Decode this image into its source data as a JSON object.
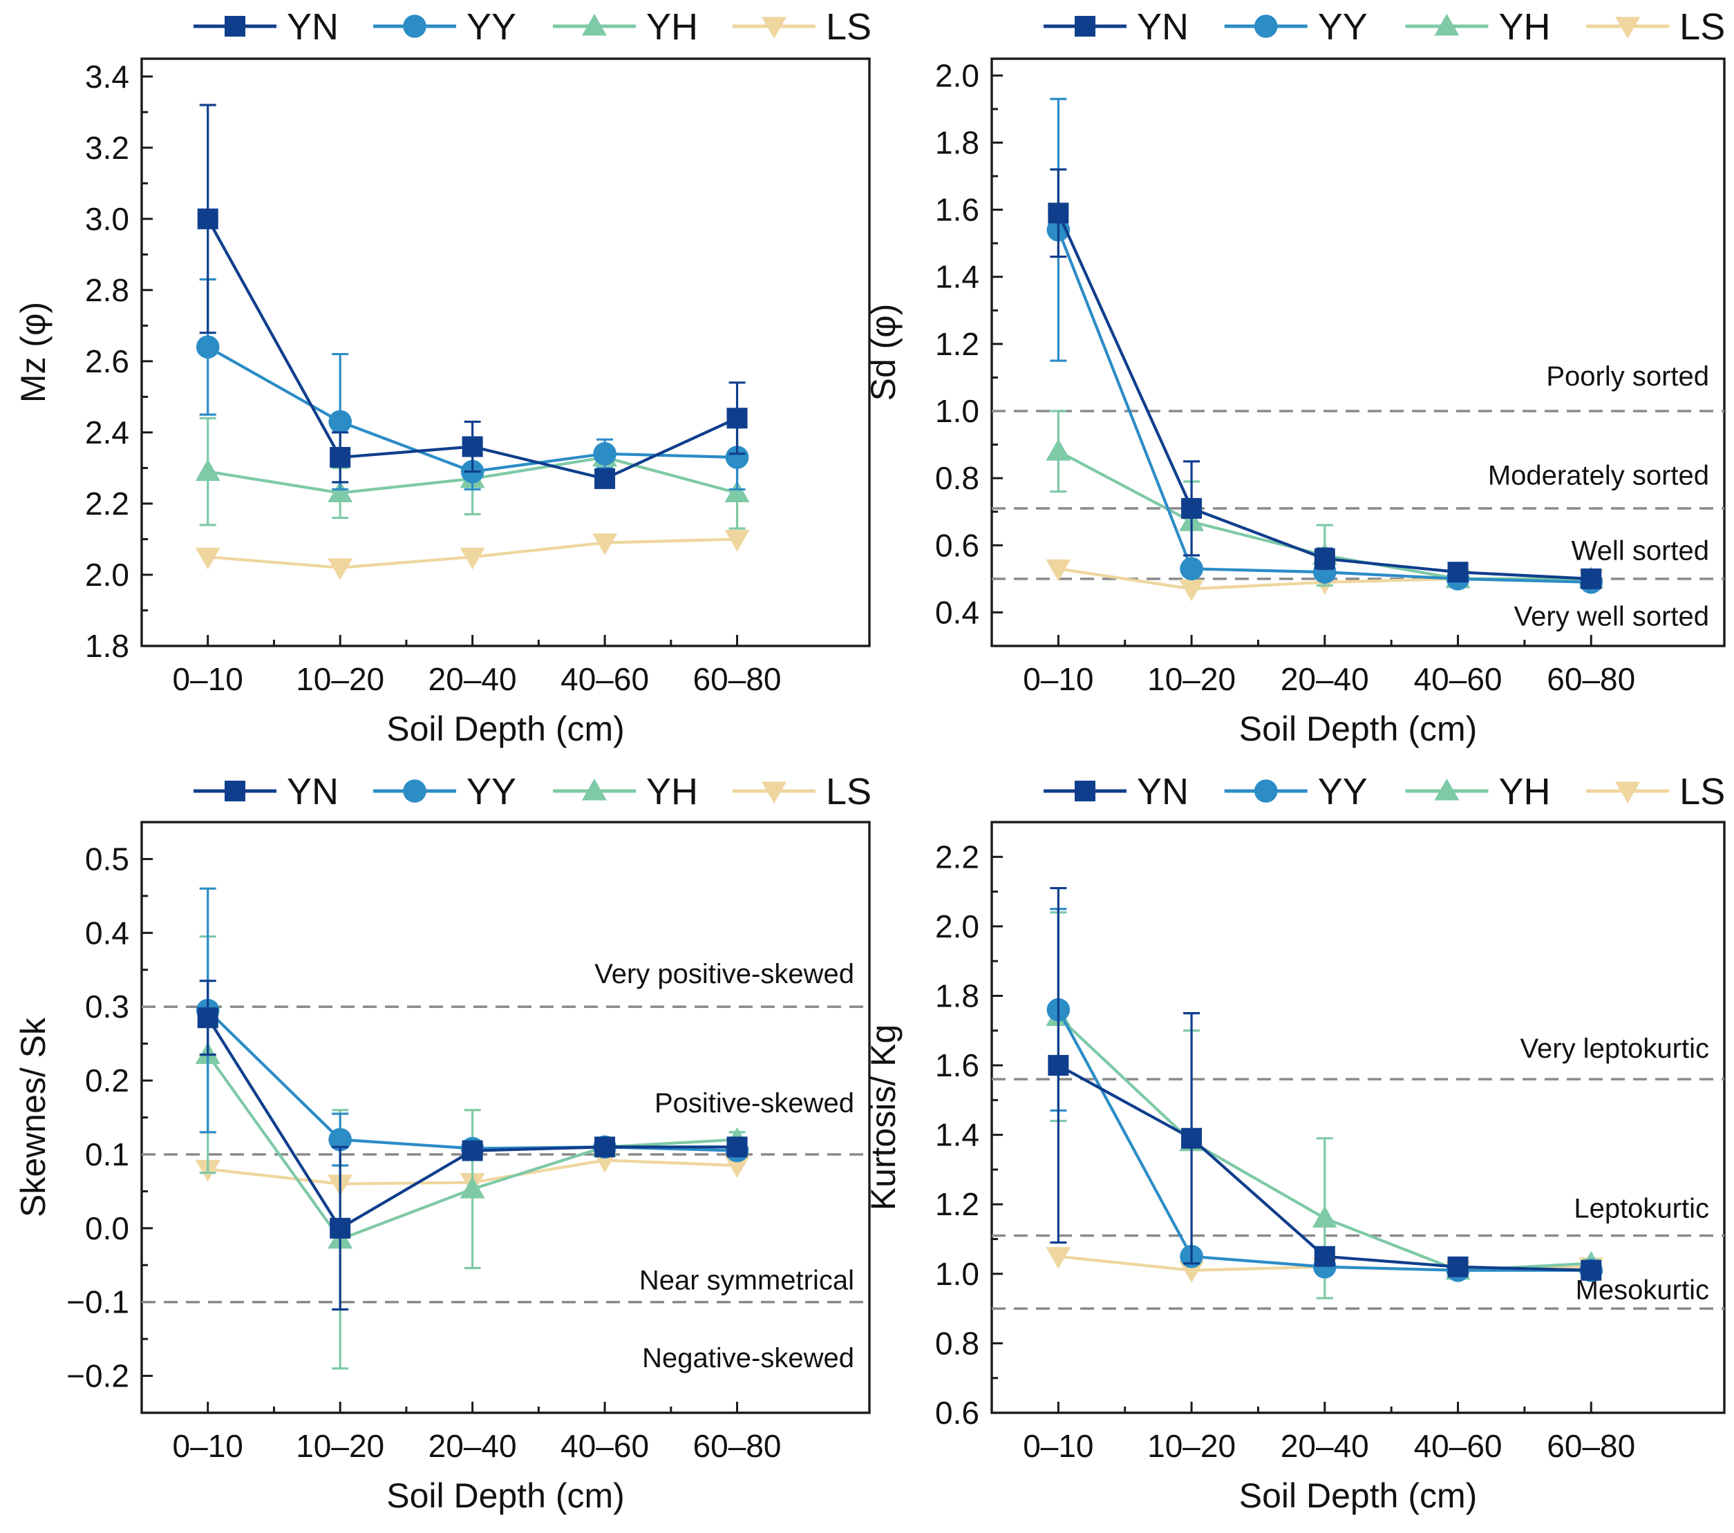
{
  "colors": {
    "YN": "#0f3e8c",
    "YY": "#2c8cc6",
    "YH": "#7ec9a6",
    "LS": "#efd69f",
    "reference": "#8a8a8a"
  },
  "chart_data": [
    {
      "type": "line",
      "ylabel": "Mz (φ)",
      "xlabel": "Soil Depth (cm)",
      "categories": [
        "0–10",
        "10–20",
        "20–40",
        "40–60",
        "60–80"
      ],
      "ylim": [
        1.8,
        3.45
      ],
      "yticks": [
        "1.8",
        "2.0",
        "2.2",
        "2.4",
        "2.6",
        "2.8",
        "3.0",
        "3.2",
        "3.4"
      ],
      "legend": [
        "YN",
        "YY",
        "YH",
        "LS"
      ],
      "series": [
        {
          "name": "YN",
          "marker": "square",
          "values": [
            3.0,
            2.33,
            2.36,
            2.27,
            2.44
          ],
          "err": [
            0.32,
            0.07,
            0.07,
            0.02,
            0.1
          ]
        },
        {
          "name": "YY",
          "marker": "circle",
          "values": [
            2.64,
            2.43,
            2.29,
            2.34,
            2.33
          ],
          "err": [
            0.19,
            0.19,
            0.05,
            0.04,
            0.09
          ]
        },
        {
          "name": "YH",
          "marker": "triangle-up",
          "values": [
            2.29,
            2.23,
            2.27,
            2.33,
            2.23
          ],
          "err": [
            0.15,
            0.07,
            0.1,
            0.02,
            0.1
          ]
        },
        {
          "name": "LS",
          "marker": "triangle-down",
          "values": [
            2.05,
            2.02,
            2.05,
            2.09,
            2.1
          ],
          "err": [
            0,
            0,
            0,
            0,
            0
          ]
        }
      ],
      "reference_lines": [],
      "zone_labels": []
    },
    {
      "type": "line",
      "ylabel": "Sd (φ)",
      "xlabel": "Soil Depth (cm)",
      "categories": [
        "0–10",
        "10–20",
        "20–40",
        "40–60",
        "60–80"
      ],
      "ylim": [
        0.3,
        2.05
      ],
      "yticks": [
        "0.4",
        "0.6",
        "0.8",
        "1.0",
        "1.2",
        "1.4",
        "1.6",
        "1.8",
        "2.0"
      ],
      "legend": [
        "YN",
        "YY",
        "YH",
        "LS"
      ],
      "series": [
        {
          "name": "YN",
          "marker": "square",
          "values": [
            1.59,
            0.71,
            0.56,
            0.52,
            0.5
          ],
          "err": [
            0.13,
            0.14,
            0.03,
            0.01,
            0.01
          ]
        },
        {
          "name": "YY",
          "marker": "circle",
          "values": [
            1.54,
            0.53,
            0.52,
            0.5,
            0.49
          ],
          "err": [
            0.39,
            0.02,
            0.02,
            0.01,
            0.02
          ]
        },
        {
          "name": "YH",
          "marker": "triangle-up",
          "values": [
            0.88,
            0.67,
            0.57,
            0.5,
            0.5
          ],
          "err": [
            0.12,
            0.12,
            0.09,
            0.02,
            0.01
          ]
        },
        {
          "name": "LS",
          "marker": "triangle-down",
          "values": [
            0.53,
            0.47,
            0.49,
            0.5,
            0.5
          ],
          "err": [
            0,
            0,
            0,
            0,
            0
          ]
        }
      ],
      "reference_lines": [
        1.0,
        0.71,
        0.5
      ],
      "zone_labels": [
        {
          "text": "Poorly sorted",
          "y": 1.105
        },
        {
          "text": "Moderately sorted",
          "y": 0.81
        },
        {
          "text": "Well sorted",
          "y": 0.585
        },
        {
          "text": "Very well sorted",
          "y": 0.39
        }
      ]
    },
    {
      "type": "line",
      "ylabel": "Skewnes/ Sk",
      "xlabel": "Soil Depth (cm)",
      "categories": [
        "0–10",
        "10–20",
        "20–40",
        "40–60",
        "60–80"
      ],
      "ylim": [
        -0.25,
        0.55
      ],
      "yticks": [
        "−0.2",
        "−0.1",
        "0.0",
        "0.1",
        "0.2",
        "0.3",
        "0.4",
        "0.5"
      ],
      "legend": [
        "YN",
        "YY",
        "YH",
        "LS"
      ],
      "series": [
        {
          "name": "YN",
          "marker": "square",
          "values": [
            0.285,
            0.0,
            0.105,
            0.11,
            0.11
          ],
          "err": [
            0.05,
            0.11,
            0.01,
            0.01,
            0.01
          ]
        },
        {
          "name": "YY",
          "marker": "circle",
          "values": [
            0.295,
            0.12,
            0.108,
            0.11,
            0.105
          ],
          "err": [
            0.165,
            0.035,
            0.01,
            0.01,
            0.01
          ]
        },
        {
          "name": "YH",
          "marker": "triangle-up",
          "values": [
            0.235,
            -0.015,
            0.053,
            0.11,
            0.12
          ],
          "err": [
            0.16,
            0.175,
            0.107,
            0.01,
            0.01
          ]
        },
        {
          "name": "LS",
          "marker": "triangle-down",
          "values": [
            0.08,
            0.06,
            0.062,
            0.092,
            0.085
          ],
          "err": [
            0,
            0,
            0,
            0,
            0
          ]
        }
      ],
      "reference_lines": [
        0.3,
        0.1,
        -0.1
      ],
      "zone_labels": [
        {
          "text": "Very positive-skewed",
          "y": 0.345
        },
        {
          "text": "Positive-skewed",
          "y": 0.17
        },
        {
          "text": "Near symmetrical",
          "y": -0.07
        },
        {
          "text": "Negative-skewed",
          "y": -0.175
        }
      ]
    },
    {
      "type": "line",
      "ylabel": "Kurtosis/ Kg",
      "xlabel": "Soil Depth (cm)",
      "categories": [
        "0–10",
        "10–20",
        "20–40",
        "40–60",
        "60–80"
      ],
      "ylim": [
        0.6,
        2.3
      ],
      "yticks": [
        "0.6",
        "0.8",
        "1.0",
        "1.2",
        "1.4",
        "1.6",
        "1.8",
        "2.0",
        "2.2"
      ],
      "legend": [
        "YN",
        "YY",
        "YH",
        "LS"
      ],
      "series": [
        {
          "name": "YN",
          "marker": "square",
          "values": [
            1.6,
            1.39,
            1.05,
            1.02,
            1.01
          ],
          "err": [
            0.51,
            0.36,
            0.02,
            0.01,
            0.01
          ]
        },
        {
          "name": "YY",
          "marker": "circle",
          "values": [
            1.76,
            1.05,
            1.02,
            1.01,
            1.01
          ],
          "err": [
            0.29,
            0.02,
            0.02,
            0.01,
            0.01
          ]
        },
        {
          "name": "YH",
          "marker": "triangle-up",
          "values": [
            1.74,
            1.38,
            1.16,
            1.01,
            1.03
          ],
          "err": [
            0.3,
            0.32,
            0.23,
            0.01,
            0.01
          ]
        },
        {
          "name": "LS",
          "marker": "triangle-down",
          "values": [
            1.05,
            1.01,
            1.02,
            1.01,
            1.02
          ],
          "err": [
            0,
            0,
            0,
            0,
            0
          ]
        }
      ],
      "reference_lines": [
        1.56,
        1.11,
        0.9
      ],
      "zone_labels": [
        {
          "text": "Very leptokurtic",
          "y": 1.65
        },
        {
          "text": "Leptokurtic",
          "y": 1.19
        },
        {
          "text": "Mesokurtic",
          "y": 0.955
        }
      ]
    }
  ]
}
